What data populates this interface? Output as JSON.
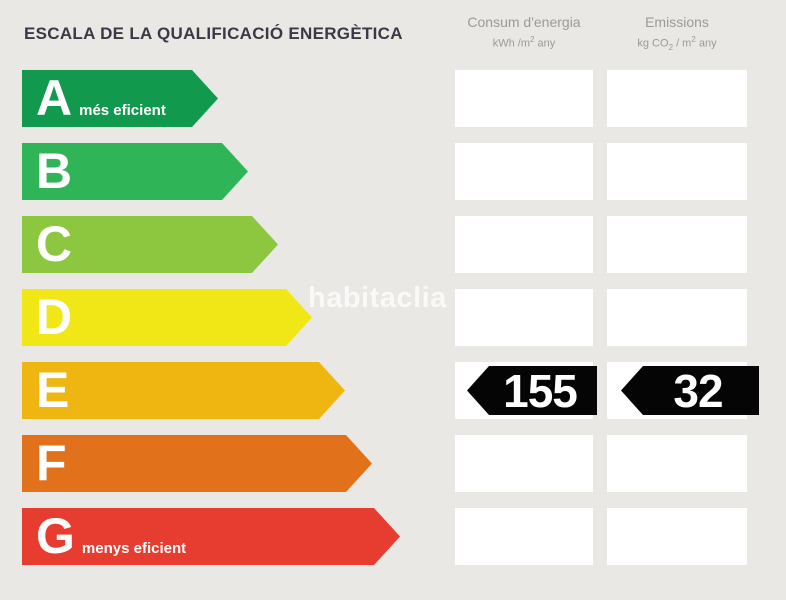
{
  "title": "ESCALA DE LA QUALIFICACIÓ ENERGÈTICA",
  "columns": {
    "consum": {
      "label": "Consum d'energia",
      "unit": [
        "kWh /m",
        "2",
        " any"
      ]
    },
    "emissions": {
      "label": "Emissions",
      "unit": [
        "kg CO",
        "2",
        " / m",
        "2",
        " any"
      ]
    }
  },
  "scale": {
    "rows": [
      {
        "letter": "A",
        "label": "més eficient",
        "color": "#119a4e"
      },
      {
        "letter": "B",
        "label": "",
        "color": "#2fb457"
      },
      {
        "letter": "C",
        "label": "",
        "color": "#8dc63f"
      },
      {
        "letter": "D",
        "label": "",
        "color": "#f2e716"
      },
      {
        "letter": "E",
        "label": "",
        "color": "#efb510"
      },
      {
        "letter": "F",
        "label": "",
        "color": "#e2711b"
      },
      {
        "letter": "G",
        "label": "menys eficient",
        "color": "#e73c30"
      }
    ]
  },
  "values": {
    "rating": "E",
    "consum": "155",
    "emissions": "32",
    "badge_color": "#050505"
  },
  "watermark": "habitaclia",
  "chart_data": {
    "type": "table",
    "title": "ESCALA DE LA QUALIFICACIÓ ENERGÈTICA",
    "categories": [
      "A",
      "B",
      "C",
      "D",
      "E",
      "F",
      "G"
    ],
    "series": [
      {
        "name": "Consum d'energia (kWh/m2 any)",
        "values": [
          null,
          null,
          null,
          null,
          155,
          null,
          null
        ]
      },
      {
        "name": "Emissions (kg CO2/m2 any)",
        "values": [
          null,
          null,
          null,
          null,
          32,
          null,
          null
        ]
      }
    ],
    "annotations": [
      "A = més eficient",
      "G = menys eficient",
      "assigned rating: E"
    ]
  }
}
